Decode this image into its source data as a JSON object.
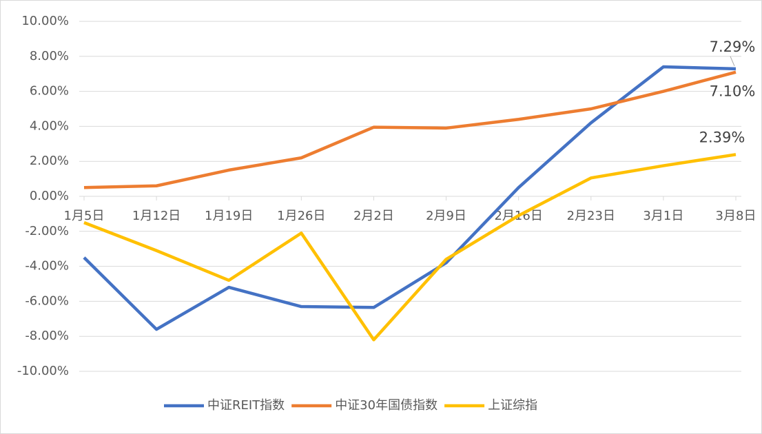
{
  "chart_data": {
    "type": "line",
    "categories": [
      "1月5日",
      "1月12日",
      "1月19日",
      "1月26日",
      "2月2日",
      "2月9日",
      "2月16日",
      "2月23日",
      "3月1日",
      "3月8日"
    ],
    "series": [
      {
        "name": "中证REIT指数",
        "color": "#4472c4",
        "values": [
          -3.5,
          -7.6,
          -5.2,
          -6.3,
          -6.35,
          -3.8,
          0.5,
          4.2,
          7.4,
          7.29
        ],
        "value_labels": [
          null,
          null,
          null,
          null,
          null,
          null,
          null,
          null,
          null,
          "7.29%"
        ]
      },
      {
        "name": "中证30年国债指数",
        "color": "#ed7d31",
        "values": [
          0.5,
          0.6,
          1.5,
          2.2,
          3.95,
          3.9,
          4.4,
          5.0,
          6.0,
          7.1
        ],
        "value_labels": [
          null,
          null,
          null,
          null,
          null,
          null,
          null,
          null,
          null,
          "7.10%"
        ]
      },
      {
        "name": "上证综指",
        "color": "#ffc000",
        "values": [
          -1.5,
          -3.1,
          -4.8,
          -2.1,
          -8.2,
          -3.6,
          -1.1,
          1.05,
          1.75,
          2.39
        ],
        "value_labels": [
          null,
          null,
          null,
          null,
          null,
          null,
          null,
          null,
          null,
          "2.39%"
        ]
      }
    ],
    "ylim": [
      -10,
      10
    ],
    "yticks": [
      {
        "value": -10,
        "label": "-10.00%"
      },
      {
        "value": -8,
        "label": "-8.00%"
      },
      {
        "value": -6,
        "label": "-6.00%"
      },
      {
        "value": -4,
        "label": "-4.00%"
      },
      {
        "value": -2,
        "label": "-2.00%"
      },
      {
        "value": 0,
        "label": "0.00%"
      },
      {
        "value": 2,
        "label": "2.00%"
      },
      {
        "value": 4,
        "label": "4.00%"
      },
      {
        "value": 6,
        "label": "6.00%"
      },
      {
        "value": 8,
        "label": "8.00%"
      },
      {
        "value": 10,
        "label": "10.00%"
      }
    ],
    "grid": true,
    "legend": "bottom"
  }
}
